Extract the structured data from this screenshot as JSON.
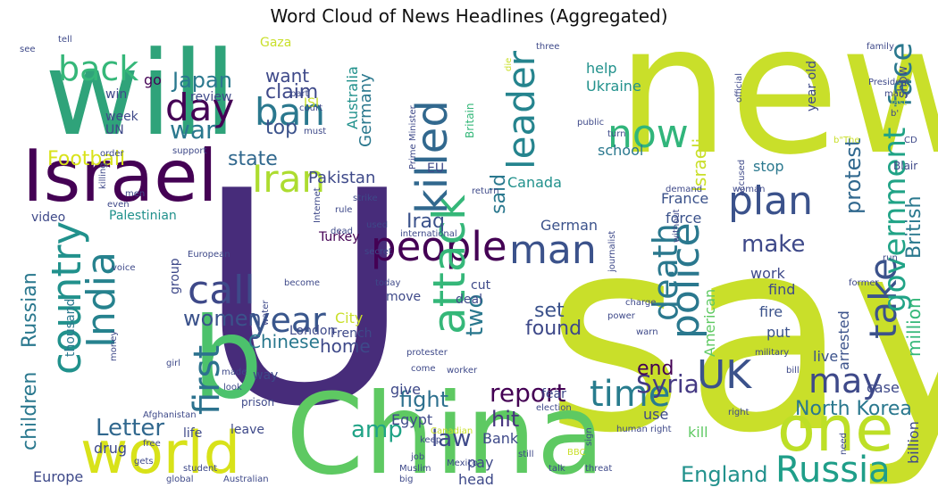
{
  "title": "Word Cloud of News Headlines (Aggregated)",
  "chart_data": {
    "type": "wordcloud",
    "words": [
      {
        "text": "say",
        "color": "#c9df2a"
      },
      {
        "text": "new",
        "color": "#c9df2a"
      },
      {
        "text": "will",
        "color": "#2fa37a"
      },
      {
        "text": "U",
        "color": "#472c7a"
      },
      {
        "text": "Israel",
        "color": "#440154"
      },
      {
        "text": "China",
        "color": "#5ec962"
      },
      {
        "text": "b",
        "color": "#4cc26c"
      },
      {
        "text": "world",
        "color": "#d8e219"
      },
      {
        "text": "one",
        "color": "#bddf26"
      },
      {
        "text": "back",
        "color": "#35b779"
      },
      {
        "text": "day",
        "color": "#440154"
      },
      {
        "text": "ban",
        "color": "#2a788e"
      },
      {
        "text": "war",
        "color": "#2a788e"
      },
      {
        "text": "Iran",
        "color": "#addc30"
      },
      {
        "text": "country",
        "color": "#21918c"
      },
      {
        "text": "India",
        "color": "#26828e"
      },
      {
        "text": "call",
        "color": "#3e4989"
      },
      {
        "text": "first",
        "color": "#2c728e"
      },
      {
        "text": "year",
        "color": "#39568c"
      },
      {
        "text": "people",
        "color": "#440154"
      },
      {
        "text": "man",
        "color": "#3b528b"
      },
      {
        "text": "attack",
        "color": "#35b779"
      },
      {
        "text": "killed",
        "color": "#31688e"
      },
      {
        "text": "leader",
        "color": "#25848e"
      },
      {
        "text": "now",
        "color": "#31b57b"
      },
      {
        "text": "plan",
        "color": "#3b528b"
      },
      {
        "text": "police",
        "color": "#2a788e"
      },
      {
        "text": "death",
        "color": "#2a788e"
      },
      {
        "text": "take",
        "color": "#3b528b"
      },
      {
        "text": "government",
        "color": "#20a386"
      },
      {
        "text": "face",
        "color": "#2a788e"
      },
      {
        "text": "UK",
        "color": "#3b528b"
      },
      {
        "text": "may",
        "color": "#3e4989"
      },
      {
        "text": "time",
        "color": "#287c8e"
      },
      {
        "text": "Russia",
        "color": "#1f9e89"
      },
      {
        "text": "Syria",
        "color": "#443983"
      },
      {
        "text": "report",
        "color": "#440154"
      },
      {
        "text": "women",
        "color": "#3b528b"
      },
      {
        "text": "Letter",
        "color": "#31688e"
      },
      {
        "text": "amp",
        "color": "#20a386"
      },
      {
        "text": "law",
        "color": "#3e4989"
      },
      {
        "text": "hit",
        "color": "#46337e"
      },
      {
        "text": "fight",
        "color": "#2d708e"
      },
      {
        "text": "England",
        "color": "#21918c"
      },
      {
        "text": "North Korea",
        "color": "#2a788e"
      },
      {
        "text": "Japan",
        "color": "#2a788e"
      },
      {
        "text": "Football",
        "color": "#d8e219"
      },
      {
        "text": "state",
        "color": "#31688e"
      },
      {
        "text": "Pakistan",
        "color": "#3e4989"
      },
      {
        "text": "Iraq",
        "color": "#3b528b"
      },
      {
        "text": "said",
        "color": "#2a788e"
      },
      {
        "text": "two",
        "color": "#2a788e"
      },
      {
        "text": "found",
        "color": "#3e4989"
      },
      {
        "text": "set",
        "color": "#3b528b"
      },
      {
        "text": "end",
        "color": "#440154"
      },
      {
        "text": "make",
        "color": "#3e4989"
      },
      {
        "text": "protest",
        "color": "#31688e"
      },
      {
        "text": "British",
        "color": "#2a788e"
      },
      {
        "text": "million",
        "color": "#35b779"
      },
      {
        "text": "Israeli",
        "color": "#c9df2a"
      },
      {
        "text": "Russian",
        "color": "#2a788e"
      },
      {
        "text": "children",
        "color": "#2a788e"
      },
      {
        "text": "Chinese",
        "color": "#2a788e"
      },
      {
        "text": "home",
        "color": "#3e4989"
      },
      {
        "text": "claim",
        "color": "#3e4989"
      },
      {
        "text": "want",
        "color": "#3e4989"
      },
      {
        "text": "top",
        "color": "#3b528b"
      },
      {
        "text": "Germany",
        "color": "#2a788e"
      },
      {
        "text": "Australia",
        "color": "#21918c"
      },
      {
        "text": "Ukraine",
        "color": "#21918c"
      },
      {
        "text": "help",
        "color": "#21918c"
      },
      {
        "text": "school",
        "color": "#2a788e"
      },
      {
        "text": "Canada",
        "color": "#21918c"
      },
      {
        "text": "France",
        "color": "#3b528b"
      },
      {
        "text": "German",
        "color": "#3b528b"
      },
      {
        "text": "force",
        "color": "#3b528b"
      },
      {
        "text": "stop",
        "color": "#2a788e"
      },
      {
        "text": "work",
        "color": "#3e4989"
      },
      {
        "text": "find",
        "color": "#3e4989"
      },
      {
        "text": "fire",
        "color": "#3b528b"
      },
      {
        "text": "put",
        "color": "#3b528b"
      },
      {
        "text": "American",
        "color": "#5ec962"
      },
      {
        "text": "arrested",
        "color": "#3b528b"
      },
      {
        "text": "live",
        "color": "#3b528b"
      },
      {
        "text": "case",
        "color": "#3e4989"
      },
      {
        "text": "billion",
        "color": "#3e4989"
      },
      {
        "text": "kill",
        "color": "#5ec962"
      },
      {
        "text": "use",
        "color": "#3e4989"
      },
      {
        "text": "Bank",
        "color": "#3e4989"
      },
      {
        "text": "pay",
        "color": "#3e4989"
      },
      {
        "text": "head",
        "color": "#3e4989"
      },
      {
        "text": "Egypt",
        "color": "#3e4989"
      },
      {
        "text": "give",
        "color": "#3e4989"
      },
      {
        "text": "fear",
        "color": "#3e4989"
      },
      {
        "text": "City",
        "color": "#c9df2a"
      },
      {
        "text": "London",
        "color": "#3e4989"
      },
      {
        "text": "French",
        "color": "#3e4989"
      },
      {
        "text": "move",
        "color": "#3e4989"
      },
      {
        "text": "cut",
        "color": "#3e4989"
      },
      {
        "text": "deal",
        "color": "#3e4989"
      },
      {
        "text": "Turkey",
        "color": "#440154"
      },
      {
        "text": "Palestinian",
        "color": "#21918c"
      },
      {
        "text": "video",
        "color": "#3e4989"
      },
      {
        "text": "group",
        "color": "#3e4989"
      },
      {
        "text": "thousand",
        "color": "#2a788e"
      },
      {
        "text": "review",
        "color": "#3e4989"
      },
      {
        "text": "win",
        "color": "#3e4989"
      },
      {
        "text": "week",
        "color": "#3e4989"
      },
      {
        "text": "UN",
        "color": "#3e4989"
      },
      {
        "text": "go",
        "color": "#440154"
      },
      {
        "text": "Gaza",
        "color": "#c9df2a"
      },
      {
        "text": "ISI",
        "color": "#c9df2a"
      },
      {
        "text": "EU",
        "color": "#3e4989"
      },
      {
        "text": "Britain",
        "color": "#35b779"
      },
      {
        "text": "year old",
        "color": "#3e4989"
      },
      {
        "text": "show",
        "color": "#3e4989"
      },
      {
        "text": "Blair",
        "color": "#3e4989"
      },
      {
        "text": "Europe",
        "color": "#3e4989"
      },
      {
        "text": "drug",
        "color": "#3e4989"
      },
      {
        "text": "life",
        "color": "#3e4989"
      },
      {
        "text": "leave",
        "color": "#3e4989"
      },
      {
        "text": "way",
        "color": "#3e4989"
      },
      {
        "text": "Afghanistan",
        "color": "#3e4989"
      },
      {
        "text": "prison",
        "color": "#3e4989"
      },
      {
        "text": "Mexico",
        "color": "#3e4989"
      },
      {
        "text": "Muslim",
        "color": "#3e4989"
      },
      {
        "text": "talk",
        "color": "#3e4989"
      },
      {
        "text": "threat",
        "color": "#3e4989"
      },
      {
        "text": "human right",
        "color": "#3e4989"
      },
      {
        "text": "election",
        "color": "#3e4989"
      },
      {
        "text": "Australian",
        "color": "#3e4989"
      },
      {
        "text": "student",
        "color": "#3e4989"
      },
      {
        "text": "global",
        "color": "#3e4989"
      },
      {
        "text": "free",
        "color": "#3e4989"
      },
      {
        "text": "gets",
        "color": "#3e4989"
      },
      {
        "text": "girl",
        "color": "#3e4989"
      },
      {
        "text": "money",
        "color": "#3e4989"
      },
      {
        "text": "made",
        "color": "#3e4989"
      },
      {
        "text": "look",
        "color": "#3e4989"
      },
      {
        "text": "come",
        "color": "#3e4989"
      },
      {
        "text": "worker",
        "color": "#3e4989"
      },
      {
        "text": "protester",
        "color": "#3e4989"
      },
      {
        "text": "job",
        "color": "#3e4989"
      },
      {
        "text": "keep",
        "color": "#3e4989"
      },
      {
        "text": "Canadian",
        "color": "#c9df2a"
      },
      {
        "text": "big",
        "color": "#3e4989"
      },
      {
        "text": "still",
        "color": "#3e4989"
      },
      {
        "text": "BBC",
        "color": "#c9df2a"
      },
      {
        "text": "sign",
        "color": "#3e4989"
      },
      {
        "text": "need",
        "color": "#3e4989"
      },
      {
        "text": "right",
        "color": "#3e4989"
      },
      {
        "text": "bill",
        "color": "#3e4989"
      },
      {
        "text": "military",
        "color": "#3e4989"
      },
      {
        "text": "charge",
        "color": "#3e4989"
      },
      {
        "text": "power",
        "color": "#3e4989"
      },
      {
        "text": "warn",
        "color": "#3e4989"
      },
      {
        "text": "former",
        "color": "#3e4989"
      },
      {
        "text": "run",
        "color": "#3e4989"
      },
      {
        "text": "journalist",
        "color": "#3e4989"
      },
      {
        "text": "without",
        "color": "#3e4989"
      },
      {
        "text": "demand",
        "color": "#3e4989"
      },
      {
        "text": "woman",
        "color": "#3e4989"
      },
      {
        "text": "accused",
        "color": "#3e4989"
      },
      {
        "text": "CD",
        "color": "#3e4989"
      },
      {
        "text": "b'",
        "color": "#3e4989"
      },
      {
        "text": "b\"The",
        "color": "#c9df2a"
      },
      {
        "text": "last",
        "color": "#c9df2a"
      },
      {
        "text": "President",
        "color": "#3e4989"
      },
      {
        "text": "many",
        "color": "#3e4989"
      },
      {
        "text": "official",
        "color": "#3e4989"
      },
      {
        "text": "family",
        "color": "#3e4989"
      },
      {
        "text": "three",
        "color": "#3e4989"
      },
      {
        "text": "die",
        "color": "#c9df2a"
      },
      {
        "text": "public",
        "color": "#3e4989"
      },
      {
        "text": "turn",
        "color": "#3e4989"
      },
      {
        "text": "Prime Minister",
        "color": "#3e4989"
      },
      {
        "text": "return",
        "color": "#3e4989"
      },
      {
        "text": "strike",
        "color": "#3e4989"
      },
      {
        "text": "Internet",
        "color": "#3e4989"
      },
      {
        "text": "rule",
        "color": "#3e4989"
      },
      {
        "text": "used",
        "color": "#3e4989"
      },
      {
        "text": "international",
        "color": "#3e4989"
      },
      {
        "text": "secret",
        "color": "#3e4989"
      },
      {
        "text": "today",
        "color": "#3e4989"
      },
      {
        "text": "become",
        "color": "#3e4989"
      },
      {
        "text": "water",
        "color": "#3e4989"
      },
      {
        "text": "dead",
        "color": "#3e4989"
      },
      {
        "text": "European",
        "color": "#3e4989"
      },
      {
        "text": "voice",
        "color": "#3e4989"
      },
      {
        "text": "men",
        "color": "#3e4989"
      },
      {
        "text": "even",
        "color": "#3e4989"
      },
      {
        "text": "killing",
        "color": "#3e4989"
      },
      {
        "text": "order",
        "color": "#3e4989"
      },
      {
        "text": "support",
        "color": "#3e4989"
      },
      {
        "text": "court",
        "color": "#3e4989"
      },
      {
        "text": "part",
        "color": "#3e4989"
      },
      {
        "text": "must",
        "color": "#3e4989"
      },
      {
        "text": "tell",
        "color": "#3e4989"
      },
      {
        "text": "see",
        "color": "#3e4989"
      }
    ]
  }
}
